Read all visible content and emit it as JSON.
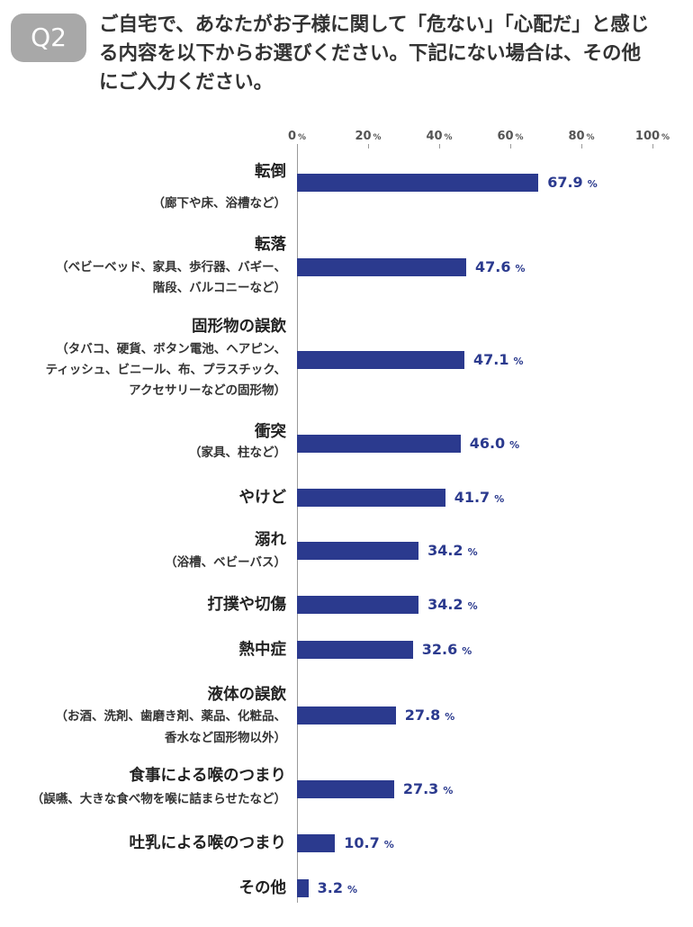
{
  "header": {
    "badge": "Q2",
    "question_lines": [
      "ご自宅で、あなたがお子様に関して「危ない」「心配だ」と感じ",
      "る内容を以下からお選びください。下記にない場合は、その他",
      "にご入力ください。"
    ]
  },
  "colors": {
    "badge": "#a8a8a8",
    "bar": "#2b3a8e",
    "text": "#333333"
  },
  "chart_data": {
    "type": "bar",
    "orientation": "horizontal",
    "x_axis_position": "top",
    "grid": false,
    "xlim": [
      0,
      100
    ],
    "ticks": [
      0,
      20,
      40,
      60,
      80,
      100
    ],
    "tick_unit": "%",
    "categories": [
      "転倒",
      "転落",
      "固形物の誤飲",
      "衝突",
      "やけど",
      "溺れ",
      "打撲や切傷",
      "熱中症",
      "液体の誤飲",
      "食事による喉のつまり",
      "吐乳による喉のつまり",
      "その他"
    ],
    "category_notes": [
      [
        "（廊下や床、浴槽など）"
      ],
      [
        "（ベビーベッド、家具、歩行器、バギー、",
        "階段、バルコニーなど）"
      ],
      [
        "（タバコ、硬貨、ボタン電池、ヘアピン、",
        "ティッシュ、ビニール、布、プラスチック、",
        "アクセサリーなどの固形物）"
      ],
      [
        "（家具、柱など）"
      ],
      [],
      [
        "（浴槽、ベビーバス）"
      ],
      [],
      [],
      [
        "（お酒、洗剤、歯磨き剤、薬品、化粧品、",
        "香水など固形物以外）"
      ],
      [
        "（誤嚥、大きな食べ物を喉に詰まらせたなど）"
      ],
      [],
      []
    ],
    "values": [
      67.9,
      47.6,
      47.1,
      46.0,
      41.7,
      34.2,
      34.2,
      32.6,
      27.8,
      27.3,
      10.7,
      3.2
    ],
    "data_labels": [
      "67.9",
      "47.6",
      "47.1",
      "46.0",
      "41.7",
      "34.2",
      "34.2",
      "32.6",
      "27.8",
      "27.3",
      "10.7",
      "3.2"
    ],
    "value_unit": "%"
  }
}
